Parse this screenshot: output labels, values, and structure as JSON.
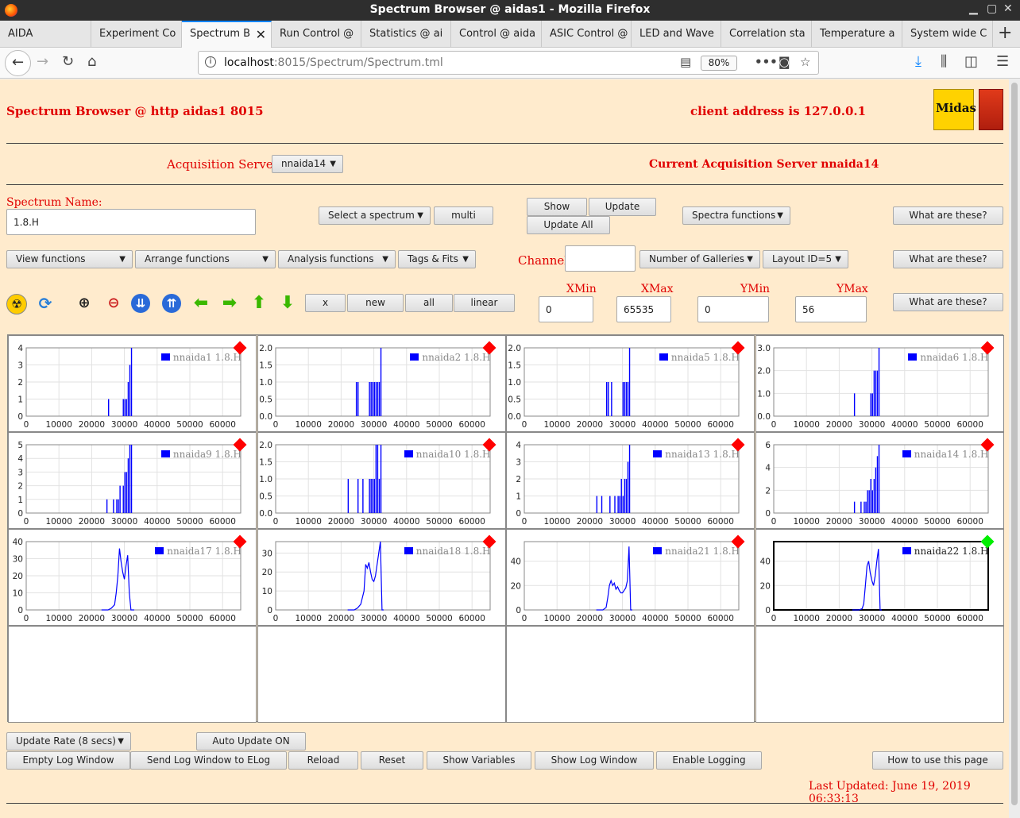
{
  "window": {
    "title": "Spectrum Browser @ aidas1 - Mozilla Firefox"
  },
  "tabs": [
    {
      "label": "AIDA",
      "active": false
    },
    {
      "label": "Experiment Co",
      "active": false
    },
    {
      "label": "Spectrum B",
      "active": true
    },
    {
      "label": "Run Control @",
      "active": false
    },
    {
      "label": "Statistics @ ai",
      "active": false
    },
    {
      "label": "Control @ aida",
      "active": false
    },
    {
      "label": "ASIC Control @",
      "active": false
    },
    {
      "label": "LED and Wave",
      "active": false
    },
    {
      "label": "Correlation sta",
      "active": false
    },
    {
      "label": "Temperature a",
      "active": false
    },
    {
      "label": "System wide C",
      "active": false
    }
  ],
  "address": {
    "host": "localhost",
    "rest": ":8015/Spectrum/Spectrum.tml",
    "zoom": "80%"
  },
  "header": {
    "title": "Spectrum Browser @ http aidas1 8015",
    "client": "client address is 127.0.0.1",
    "logo_text": "Midas"
  },
  "acq": {
    "label": "Acquisition Servers",
    "selected": "nnaida14",
    "current": "Current Acquisition Server nnaida14"
  },
  "spectrum": {
    "label": "Spectrum Name:",
    "value": "1.8.H"
  },
  "buttons": {
    "select_spectrum": "Select a spectrum",
    "multi": "multi",
    "show": "Show",
    "update": "Update",
    "update_all": "Update All",
    "spectra_functions": "Spectra functions",
    "what1": "What are these?",
    "view_functions": "View functions",
    "arrange_functions": "Arrange functions",
    "analysis_functions": "Analysis functions",
    "tags_fits": "Tags & Fits",
    "number_galleries": "Number of Galleries",
    "layout": "Layout ID=5",
    "what2": "What are these?",
    "x": "x",
    "new": "new",
    "all": "all",
    "linear": "linear",
    "what3": "What are these?",
    "update_rate": "Update Rate (8 secs)",
    "auto_update": "Auto Update ON",
    "empty_log": "Empty Log Window",
    "send_log": "Send Log Window to ELog",
    "reload": "Reload",
    "reset": "Reset",
    "show_vars": "Show Variables",
    "show_log": "Show Log Window",
    "enable_logging": "Enable Logging",
    "how_to": "How to use this page"
  },
  "channel": {
    "label": "Channel:",
    "value": ""
  },
  "range": {
    "xmin_label": "XMin",
    "xmax_label": "XMax",
    "ymin_label": "YMin",
    "ymax_label": "YMax",
    "xmin": "0",
    "xmax": "65535",
    "ymin": "0",
    "ymax": "56"
  },
  "colors": {
    "alert": "#ff0000",
    "ok": "#00ee00",
    "series": "#0000ff",
    "page_bg": "#ffebcd"
  },
  "status": {
    "last_updated": "Last Updated: June 19, 2019 06:33:13"
  },
  "chart_data": [
    {
      "type": "bar",
      "legend": "nnaida1 1.8.H",
      "status": "alert",
      "xlim": [
        0,
        65535
      ],
      "xticks": [
        0,
        10000,
        20000,
        30000,
        40000,
        50000,
        60000
      ],
      "yticks": [
        "0",
        "1",
        "2",
        "3",
        "4"
      ],
      "ylim": [
        0,
        4
      ],
      "x": [
        25000,
        29500,
        30000,
        30500,
        31000,
        31500,
        32000
      ],
      "y": [
        1,
        1,
        1,
        1,
        2,
        3,
        4
      ]
    },
    {
      "type": "bar",
      "legend": "nnaida2 1.8.H",
      "status": "alert",
      "xlim": [
        0,
        65535
      ],
      "xticks": [
        0,
        10000,
        20000,
        30000,
        40000,
        50000,
        60000
      ],
      "yticks": [
        "0.0",
        "0.5",
        "1.0",
        "1.5",
        "2.0"
      ],
      "ylim": [
        0,
        2
      ],
      "x": [
        24500,
        25000,
        28500,
        29000,
        29500,
        30000,
        30500,
        31000,
        31500,
        32000
      ],
      "y": [
        1,
        1,
        1,
        1,
        1,
        1,
        1,
        1,
        1,
        2
      ]
    },
    {
      "type": "bar",
      "legend": "nnaida5 1.8.H",
      "status": "alert",
      "xlim": [
        0,
        65535
      ],
      "xticks": [
        0,
        10000,
        20000,
        30000,
        40000,
        50000,
        60000
      ],
      "yticks": [
        "0.0",
        "0.5",
        "1.0",
        "1.5",
        "2.0"
      ],
      "ylim": [
        0,
        2
      ],
      "x": [
        25000,
        25500,
        26500,
        30000,
        30500,
        31000,
        31500,
        32000
      ],
      "y": [
        1,
        1,
        1,
        1,
        1,
        1,
        1,
        2
      ]
    },
    {
      "type": "bar",
      "legend": "nnaida6 1.8.H",
      "status": "alert",
      "xlim": [
        0,
        65535
      ],
      "xticks": [
        0,
        10000,
        20000,
        30000,
        40000,
        50000,
        60000
      ],
      "yticks": [
        "0.0",
        "1.0",
        "2.0",
        "3.0"
      ],
      "ylim": [
        0,
        3
      ],
      "x": [
        24500,
        29500,
        30000,
        30500,
        31000,
        31500,
        32000
      ],
      "y": [
        1,
        1,
        1,
        2,
        2,
        2,
        3
      ]
    },
    {
      "type": "bar",
      "legend": "nnaida9 1.8.H",
      "status": "alert",
      "xlim": [
        0,
        65535
      ],
      "xticks": [
        0,
        10000,
        20000,
        30000,
        40000,
        50000,
        60000
      ],
      "yticks": [
        "0",
        "1",
        "2",
        "3",
        "4",
        "5"
      ],
      "ylim": [
        0,
        5
      ],
      "x": [
        24500,
        26500,
        27500,
        28000,
        28500,
        29500,
        30000,
        30500,
        31000,
        31500,
        32000
      ],
      "y": [
        1,
        1,
        1,
        1,
        2,
        2,
        3,
        3,
        4,
        5,
        5
      ]
    },
    {
      "type": "bar",
      "legend": "nnaida10 1.8.H",
      "status": "alert",
      "xlim": [
        0,
        65535
      ],
      "xticks": [
        0,
        10000,
        20000,
        30000,
        40000,
        50000,
        60000
      ],
      "yticks": [
        "0.0",
        "0.5",
        "1.0",
        "1.5",
        "2.0"
      ],
      "ylim": [
        0,
        2
      ],
      "x": [
        22000,
        25000,
        26500,
        28500,
        29000,
        29500,
        30000,
        30500,
        31000,
        31500,
        32000
      ],
      "y": [
        1,
        1,
        1,
        1,
        1,
        1,
        1,
        2,
        2,
        1,
        2
      ]
    },
    {
      "type": "bar",
      "legend": "nnaida13 1.8.H",
      "status": "alert",
      "xlim": [
        0,
        65535
      ],
      "xticks": [
        0,
        10000,
        20000,
        30000,
        40000,
        50000,
        60000
      ],
      "yticks": [
        "0",
        "1",
        "2",
        "3",
        "4"
      ],
      "ylim": [
        0,
        4
      ],
      "x": [
        22000,
        23500,
        26000,
        27500,
        28500,
        29000,
        29500,
        30000,
        30500,
        31000,
        31500,
        32000
      ],
      "y": [
        1,
        1,
        1,
        1,
        1,
        1,
        2,
        1,
        2,
        2,
        3,
        4
      ]
    },
    {
      "type": "bar",
      "legend": "nnaida14 1.8.H",
      "status": "alert",
      "xlim": [
        0,
        65535
      ],
      "xticks": [
        0,
        10000,
        20000,
        30000,
        40000,
        50000,
        60000
      ],
      "yticks": [
        "0",
        "2",
        "4",
        "6"
      ],
      "ylim": [
        0,
        6
      ],
      "x": [
        24500,
        26500,
        27500,
        28000,
        28500,
        29000,
        29500,
        30000,
        30500,
        31000,
        31500,
        32000
      ],
      "y": [
        1,
        1,
        1,
        1,
        2,
        2,
        3,
        2,
        3,
        4,
        5,
        6
      ]
    },
    {
      "type": "line",
      "legend": "nnaida17 1.8.H",
      "status": "alert",
      "xlim": [
        0,
        65535
      ],
      "xticks": [
        0,
        10000,
        20000,
        30000,
        40000,
        50000,
        60000
      ],
      "yticks": [
        "0",
        "10",
        "20",
        "30",
        "40"
      ],
      "ylim": [
        0,
        40
      ],
      "x": [
        23000,
        25000,
        26000,
        27000,
        27500,
        28000,
        28500,
        29000,
        29500,
        30000,
        30500,
        31000,
        31500,
        32000,
        32500,
        33000
      ],
      "y": [
        0,
        0,
        1,
        3,
        10,
        20,
        36,
        28,
        22,
        18,
        26,
        32,
        10,
        0,
        0,
        0
      ]
    },
    {
      "type": "line",
      "legend": "nnaida18 1.8.H",
      "status": "alert",
      "xlim": [
        0,
        65535
      ],
      "xticks": [
        0,
        10000,
        20000,
        30000,
        40000,
        50000,
        60000
      ],
      "yticks": [
        "0",
        "10",
        "20",
        "30"
      ],
      "ylim": [
        0,
        36
      ],
      "x": [
        22000,
        24000,
        25000,
        26000,
        27000,
        27500,
        28000,
        28500,
        29000,
        29500,
        30000,
        30500,
        31000,
        31500,
        32000,
        32500,
        33000
      ],
      "y": [
        0,
        0,
        1,
        3,
        10,
        24,
        22,
        25,
        20,
        16,
        15,
        18,
        24,
        30,
        36,
        0,
        0
      ]
    },
    {
      "type": "line",
      "legend": "nnaida21 1.8.H",
      "status": "alert",
      "xlim": [
        0,
        65535
      ],
      "xticks": [
        0,
        10000,
        20000,
        30000,
        40000,
        50000,
        60000
      ],
      "yticks": [
        "0",
        "20",
        "40"
      ],
      "ylim": [
        0,
        56
      ],
      "x": [
        22000,
        24000,
        25000,
        25500,
        26000,
        26500,
        27000,
        27500,
        28000,
        28500,
        29000,
        29500,
        30000,
        30500,
        31000,
        31500,
        32000,
        32500,
        33000
      ],
      "y": [
        0,
        0,
        2,
        10,
        20,
        24,
        20,
        22,
        17,
        19,
        16,
        14,
        14,
        16,
        18,
        24,
        52,
        0,
        0
      ]
    },
    {
      "type": "line",
      "legend": "nnaida22 1.8.H",
      "status": "ok",
      "xlim": [
        0,
        65535
      ],
      "xticks": [
        0,
        10000,
        20000,
        30000,
        40000,
        50000,
        60000
      ],
      "yticks": [
        "0",
        "20",
        "40"
      ],
      "ylim": [
        0,
        56
      ],
      "x": [
        24000,
        26000,
        27000,
        27500,
        28000,
        28500,
        29000,
        29500,
        30000,
        30500,
        31000,
        31500,
        32000,
        32500,
        33000
      ],
      "y": [
        0,
        0,
        1,
        5,
        20,
        36,
        40,
        30,
        24,
        20,
        28,
        40,
        50,
        0,
        0
      ]
    }
  ]
}
